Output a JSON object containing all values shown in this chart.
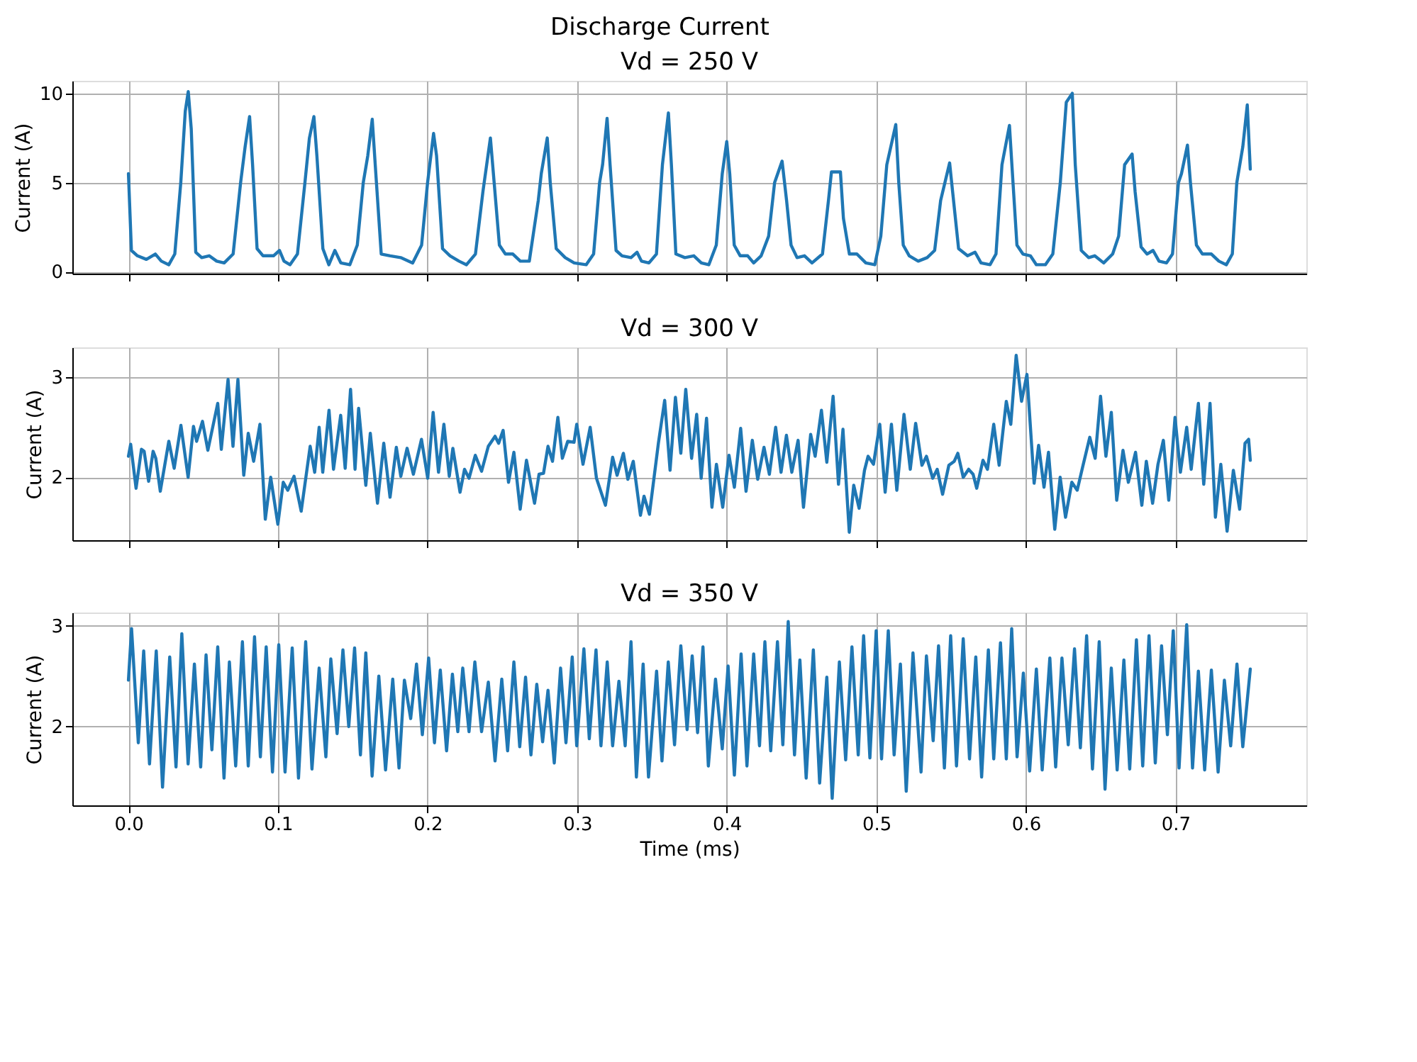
{
  "chart_data": [
    {
      "type": "line",
      "title": "Vd = 250 V",
      "ylabel": "Current (A)",
      "annotations": [
        "Discharge Current"
      ],
      "xlim": [
        -0.0375,
        0.7875
      ],
      "xticks": [
        0,
        0.1,
        0.2,
        0.3,
        0.4,
        0.5,
        0.6,
        0.7
      ],
      "ylim": [
        -0.1,
        10.7
      ],
      "yticks": [
        0,
        5,
        10
      ],
      "grid": true,
      "tick_labels": "y",
      "line_style": "solid",
      "x": [
        0,
        0.002,
        0.006,
        0.012,
        0.018,
        0.022,
        0.027,
        0.031,
        0.035,
        0.038,
        0.04,
        0.042,
        0.045,
        0.049,
        0.054,
        0.059,
        0.064,
        0.07,
        0.075,
        0.078,
        0.081,
        0.083,
        0.086,
        0.09,
        0.097,
        0.101,
        0.104,
        0.108,
        0.113,
        0.118,
        0.121,
        0.124,
        0.126,
        0.13,
        0.134,
        0.138,
        0.142,
        0.148,
        0.153,
        0.157,
        0.16,
        0.163,
        0.165,
        0.169,
        0.175,
        0.182,
        0.19,
        0.196,
        0.2,
        0.204,
        0.206,
        0.21,
        0.215,
        0.221,
        0.226,
        0.232,
        0.237,
        0.242,
        0.244,
        0.248,
        0.252,
        0.257,
        0.262,
        0.268,
        0.274,
        0.276,
        0.28,
        0.282,
        0.286,
        0.292,
        0.298,
        0.306,
        0.311,
        0.315,
        0.317,
        0.32,
        0.322,
        0.326,
        0.33,
        0.336,
        0.34,
        0.343,
        0.348,
        0.353,
        0.357,
        0.361,
        0.363,
        0.366,
        0.372,
        0.378,
        0.383,
        0.388,
        0.393,
        0.397,
        0.4,
        0.402,
        0.405,
        0.409,
        0.414,
        0.418,
        0.423,
        0.428,
        0.432,
        0.437,
        0.44,
        0.443,
        0.447,
        0.452,
        0.457,
        0.464,
        0.468,
        0.47,
        0.476,
        0.478,
        0.482,
        0.487,
        0.493,
        0.499,
        0.503,
        0.507,
        0.513,
        0.515,
        0.518,
        0.522,
        0.528,
        0.534,
        0.539,
        0.543,
        0.549,
        0.551,
        0.555,
        0.561,
        0.566,
        0.57,
        0.576,
        0.58,
        0.584,
        0.589,
        0.591,
        0.594,
        0.598,
        0.603,
        0.607,
        0.613,
        0.618,
        0.623,
        0.627,
        0.631,
        0.633,
        0.637,
        0.642,
        0.646,
        0.652,
        0.658,
        0.662,
        0.666,
        0.671,
        0.673,
        0.677,
        0.681,
        0.685,
        0.689,
        0.694,
        0.698,
        0.702,
        0.704,
        0.708,
        0.71,
        0.714,
        0.718,
        0.724,
        0.729,
        0.734,
        0.738,
        0.741,
        0.745,
        0.748,
        0.75
      ],
      "series": [
        {
          "color": "#1f77b4",
          "values": [
            5.5,
            1.2,
            0.9,
            0.7,
            1.0,
            0.6,
            0.4,
            1.0,
            5.0,
            9.0,
            10.1,
            8.0,
            1.1,
            0.8,
            0.9,
            0.6,
            0.5,
            1.0,
            5.0,
            7.0,
            8.7,
            6.0,
            1.3,
            0.9,
            0.9,
            1.2,
            0.6,
            0.4,
            1.0,
            5.0,
            7.5,
            8.7,
            6.5,
            1.3,
            0.4,
            1.2,
            0.5,
            0.4,
            1.5,
            5.0,
            6.5,
            8.55,
            6.0,
            1.0,
            0.9,
            0.8,
            0.5,
            1.5,
            5.0,
            7.75,
            6.5,
            1.3,
            0.9,
            0.6,
            0.4,
            1.0,
            4.5,
            7.5,
            5.5,
            1.5,
            1.0,
            1.0,
            0.6,
            0.6,
            4.0,
            5.5,
            7.5,
            5.0,
            1.3,
            0.8,
            0.5,
            0.4,
            1.0,
            5.0,
            6.0,
            8.6,
            6.0,
            1.2,
            0.9,
            0.8,
            1.1,
            0.6,
            0.5,
            1.0,
            6.0,
            8.9,
            6.0,
            1.0,
            0.8,
            0.9,
            0.5,
            0.4,
            1.5,
            5.5,
            7.3,
            5.5,
            1.5,
            0.9,
            0.9,
            0.5,
            0.9,
            2.0,
            5.0,
            6.2,
            4.0,
            1.5,
            0.8,
            0.9,
            0.5,
            1.0,
            4.0,
            5.6,
            5.6,
            3.0,
            1.0,
            1.0,
            0.5,
            0.4,
            2.0,
            6.0,
            8.25,
            5.0,
            1.5,
            0.9,
            0.6,
            0.8,
            1.2,
            4.0,
            6.1,
            4.5,
            1.3,
            0.9,
            1.1,
            0.5,
            0.4,
            1.0,
            6.0,
            8.2,
            5.5,
            1.5,
            1.0,
            0.9,
            0.4,
            0.4,
            1.0,
            5.0,
            9.5,
            10.0,
            6.0,
            1.2,
            0.8,
            0.9,
            0.5,
            1.0,
            2.0,
            6.0,
            6.6,
            4.5,
            1.4,
            1.0,
            1.2,
            0.6,
            0.5,
            1.0,
            5.0,
            5.5,
            7.1,
            5.0,
            1.5,
            1.0,
            1.0,
            0.6,
            0.4,
            1.0,
            5.0,
            7.0,
            9.35,
            5.75
          ]
        }
      ]
    },
    {
      "type": "line",
      "title": "Vd = 300 V",
      "ylabel": "Current (A)",
      "xlim": [
        -0.0375,
        0.7875
      ],
      "xticks": [
        0,
        0.1,
        0.2,
        0.3,
        0.4,
        0.5,
        0.6,
        0.7
      ],
      "ylim": [
        1.37,
        3.3
      ],
      "yticks": [
        2,
        3
      ],
      "grid": true,
      "tick_labels": "y",
      "line_style": "solid",
      "x": [
        0,
        0.0015,
        0.0051,
        0.0087,
        0.0105,
        0.0135,
        0.0165,
        0.0183,
        0.0213,
        0.027,
        0.0306,
        0.0351,
        0.0399,
        0.0435,
        0.0456,
        0.0495,
        0.0531,
        0.0597,
        0.0621,
        0.0666,
        0.0699,
        0.0732,
        0.0771,
        0.0801,
        0.0837,
        0.0879,
        0.0915,
        0.0951,
        0.0999,
        0.1035,
        0.1065,
        0.1107,
        0.1155,
        0.1215,
        0.1245,
        0.1275,
        0.1299,
        0.1341,
        0.1371,
        0.1419,
        0.1449,
        0.1485,
        0.1515,
        0.1539,
        0.1587,
        0.1617,
        0.1665,
        0.1707,
        0.1749,
        0.1791,
        0.1821,
        0.1863,
        0.1905,
        0.1959,
        0.2001,
        0.2037,
        0.2073,
        0.2109,
        0.2145,
        0.2169,
        0.2217,
        0.2247,
        0.2277,
        0.2319,
        0.2361,
        0.2406,
        0.2451,
        0.2475,
        0.2505,
        0.2541,
        0.2577,
        0.2619,
        0.2661,
        0.2715,
        0.2745,
        0.2775,
        0.2805,
        0.2835,
        0.2871,
        0.2901,
        0.2937,
        0.2979,
        0.2997,
        0.3039,
        0.3087,
        0.3129,
        0.3189,
        0.3237,
        0.3267,
        0.3309,
        0.3339,
        0.3375,
        0.3423,
        0.3447,
        0.3483,
        0.3543,
        0.3585,
        0.3621,
        0.3657,
        0.3693,
        0.3726,
        0.3765,
        0.3799,
        0.3829,
        0.3865,
        0.3901,
        0.3931,
        0.3973,
        0.4015,
        0.4051,
        0.4093,
        0.4129,
        0.4171,
        0.4207,
        0.4249,
        0.4285,
        0.4327,
        0.4363,
        0.4399,
        0.4435,
        0.4477,
        0.4513,
        0.4561,
        0.4591,
        0.4633,
        0.4669,
        0.4711,
        0.4747,
        0.4777,
        0.4819,
        0.4849,
        0.4885,
        0.4921,
        0.4945,
        0.4981,
        0.5023,
        0.5059,
        0.5101,
        0.5137,
        0.5185,
        0.5227,
        0.5263,
        0.5305,
        0.5335,
        0.5377,
        0.5407,
        0.5443,
        0.5485,
        0.5521,
        0.5545,
        0.5581,
        0.5617,
        0.5647,
        0.5671,
        0.5713,
        0.5743,
        0.5785,
        0.5821,
        0.5869,
        0.5899,
        0.5935,
        0.5971,
        0.6007,
        0.6055,
        0.6085,
        0.6121,
        0.6151,
        0.6193,
        0.6229,
        0.6265,
        0.6307,
        0.6343,
        0.6379,
        0.6427,
        0.6463,
        0.6499,
        0.6535,
        0.6571,
        0.6607,
        0.6649,
        0.6685,
        0.6733,
        0.6775,
        0.6805,
        0.6847,
        0.6883,
        0.6919,
        0.6955,
        0.6997,
        0.7033,
        0.7075,
        0.7105,
        0.7153,
        0.7189,
        0.7231,
        0.7267,
        0.7303,
        0.7345,
        0.7387,
        0.7429,
        0.7465,
        0.7489,
        0.75
      ],
      "series": [
        {
          "color": "#1f77b4",
          "values": [
            2.21,
            2.33,
            1.89,
            2.28,
            2.26,
            1.96,
            2.26,
            2.19,
            1.86,
            2.36,
            2.09,
            2.52,
            2.0,
            2.51,
            2.36,
            2.56,
            2.27,
            2.74,
            2.28,
            2.98,
            2.31,
            2.98,
            2.02,
            2.44,
            2.16,
            2.53,
            1.58,
            2.0,
            1.53,
            1.95,
            1.87,
            2.01,
            1.66,
            2.31,
            2.05,
            2.5,
            2.05,
            2.67,
            2.08,
            2.62,
            2.09,
            2.88,
            2.08,
            2.69,
            1.92,
            2.44,
            1.74,
            2.34,
            1.8,
            2.3,
            2.01,
            2.29,
            2.03,
            2.38,
            1.99,
            2.65,
            2.05,
            2.53,
            2.01,
            2.29,
            1.85,
            2.08,
            1.99,
            2.22,
            2.06,
            2.31,
            2.41,
            2.34,
            2.47,
            1.95,
            2.25,
            1.68,
            2.17,
            1.74,
            2.03,
            2.04,
            2.31,
            2.16,
            2.6,
            2.19,
            2.36,
            2.35,
            2.53,
            2.13,
            2.5,
            1.99,
            1.72,
            2.2,
            2.02,
            2.24,
            1.98,
            2.16,
            1.62,
            1.81,
            1.63,
            2.34,
            2.77,
            2.07,
            2.8,
            2.24,
            2.88,
            2.19,
            2.63,
            1.99,
            2.59,
            1.7,
            2.13,
            1.7,
            2.22,
            1.9,
            2.49,
            1.86,
            2.37,
            1.98,
            2.3,
            2.03,
            2.5,
            2.05,
            2.42,
            2.05,
            2.37,
            1.7,
            2.43,
            2.21,
            2.67,
            2.15,
            2.81,
            1.93,
            2.48,
            1.45,
            1.92,
            1.69,
            2.07,
            2.21,
            2.13,
            2.53,
            1.85,
            2.53,
            1.87,
            2.63,
            2.08,
            2.54,
            2.12,
            2.21,
            1.99,
            2.08,
            1.83,
            2.12,
            2.16,
            2.24,
            2.0,
            2.08,
            2.03,
            1.89,
            2.17,
            2.08,
            2.53,
            2.12,
            2.76,
            2.53,
            3.22,
            2.76,
            3.03,
            1.94,
            2.32,
            1.9,
            2.25,
            1.48,
            2.0,
            1.6,
            1.95,
            1.87,
            2.1,
            2.4,
            2.19,
            2.81,
            2.21,
            2.65,
            1.77,
            2.27,
            1.95,
            2.25,
            1.72,
            2.16,
            1.74,
            2.13,
            2.37,
            1.77,
            2.6,
            2.05,
            2.5,
            2.08,
            2.74,
            1.93,
            2.74,
            1.6,
            2.13,
            1.46,
            2.07,
            1.68,
            2.34,
            2.38,
            2.17
          ]
        }
      ]
    },
    {
      "type": "line",
      "title": "Vd = 350 V",
      "xlabel": "Time (ms)",
      "ylabel": "Current (A)",
      "xlim": [
        -0.0375,
        0.7875
      ],
      "xticks": [
        {
          "value": 0,
          "label": "0.0"
        },
        {
          "value": 0.1,
          "label": "0.1"
        },
        {
          "value": 0.2,
          "label": "0.2"
        },
        {
          "value": 0.3,
          "label": "0.3"
        },
        {
          "value": 0.4,
          "label": "0.4"
        },
        {
          "value": 0.5,
          "label": "0.5"
        },
        {
          "value": 0.6,
          "label": "0.6"
        },
        {
          "value": 0.7,
          "label": "0.7"
        }
      ],
      "ylim": [
        1.22,
        3.13
      ],
      "yticks": [
        2,
        3
      ],
      "grid": true,
      "line_style": "solid",
      "x": [
        0,
        0.0021,
        0.0066,
        0.0102,
        0.0141,
        0.0186,
        0.0228,
        0.0276,
        0.0318,
        0.0357,
        0.0399,
        0.0441,
        0.0483,
        0.0519,
        0.0558,
        0.0597,
        0.0639,
        0.0675,
        0.0717,
        0.0762,
        0.0801,
        0.0843,
        0.0882,
        0.0921,
        0.0963,
        0.1005,
        0.1047,
        0.1095,
        0.1137,
        0.1185,
        0.1227,
        0.1275,
        0.132,
        0.1353,
        0.1395,
        0.1434,
        0.1473,
        0.1512,
        0.1551,
        0.1587,
        0.1629,
        0.1674,
        0.1719,
        0.1767,
        0.1809,
        0.1845,
        0.1887,
        0.1926,
        0.1965,
        0.2007,
        0.2046,
        0.2085,
        0.2127,
        0.2166,
        0.2202,
        0.2235,
        0.2277,
        0.2316,
        0.2361,
        0.2406,
        0.2451,
        0.2496,
        0.2535,
        0.2577,
        0.2616,
        0.2655,
        0.2691,
        0.273,
        0.2769,
        0.2805,
        0.2847,
        0.2889,
        0.2925,
        0.2967,
        0.2997,
        0.3045,
        0.3081,
        0.3126,
        0.3159,
        0.3201,
        0.3237,
        0.3279,
        0.3321,
        0.336,
        0.3396,
        0.3441,
        0.3477,
        0.3531,
        0.3567,
        0.3609,
        0.3651,
        0.3693,
        0.3735,
        0.3769,
        0.3805,
        0.3841,
        0.3877,
        0.3925,
        0.397,
        0.4009,
        0.4051,
        0.4096,
        0.4135,
        0.418,
        0.4219,
        0.4255,
        0.4294,
        0.4339,
        0.4375,
        0.4411,
        0.4453,
        0.4489,
        0.4531,
        0.4579,
        0.4621,
        0.4669,
        0.4705,
        0.4753,
        0.4795,
        0.4837,
        0.4879,
        0.4915,
        0.4957,
        0.4999,
        0.5035,
        0.508,
        0.5119,
        0.5161,
        0.52,
        0.5245,
        0.5299,
        0.5335,
        0.538,
        0.5416,
        0.5455,
        0.5497,
        0.5536,
        0.5581,
        0.5623,
        0.5665,
        0.5704,
        0.5749,
        0.5785,
        0.583,
        0.5869,
        0.5905,
        0.5941,
        0.5983,
        0.6025,
        0.607,
        0.6109,
        0.616,
        0.6199,
        0.6241,
        0.6283,
        0.6325,
        0.6364,
        0.6406,
        0.6445,
        0.649,
        0.6529,
        0.6571,
        0.661,
        0.6655,
        0.6694,
        0.6739,
        0.6781,
        0.6823,
        0.6865,
        0.6907,
        0.6946,
        0.6985,
        0.7024,
        0.7075,
        0.7114,
        0.7153,
        0.7195,
        0.724,
        0.7285,
        0.7327,
        0.7369,
        0.7411,
        0.745,
        0.75
      ],
      "series": [
        {
          "color": "#1f77b4",
          "values": [
            2.46,
            2.97,
            1.84,
            2.75,
            1.63,
            2.75,
            1.4,
            2.69,
            1.6,
            2.92,
            1.63,
            2.62,
            1.6,
            2.71,
            1.77,
            2.79,
            1.49,
            2.64,
            1.61,
            2.84,
            1.61,
            2.89,
            1.7,
            2.79,
            1.55,
            2.81,
            1.55,
            2.78,
            1.49,
            2.84,
            1.58,
            2.58,
            1.7,
            2.67,
            1.93,
            2.76,
            2.0,
            2.78,
            1.72,
            2.73,
            1.51,
            2.5,
            1.57,
            2.47,
            1.59,
            2.46,
            2.08,
            2.62,
            1.92,
            2.68,
            1.84,
            2.56,
            1.76,
            2.52,
            1.95,
            2.58,
            1.95,
            2.64,
            1.95,
            2.44,
            1.66,
            2.47,
            1.76,
            2.64,
            1.8,
            2.49,
            1.72,
            2.42,
            1.85,
            2.36,
            1.64,
            2.58,
            1.84,
            2.69,
            1.81,
            2.77,
            1.88,
            2.76,
            1.81,
            2.64,
            1.81,
            2.45,
            1.81,
            2.84,
            1.5,
            2.62,
            1.5,
            2.55,
            1.66,
            2.64,
            1.82,
            2.8,
            1.97,
            2.7,
            1.94,
            2.79,
            1.61,
            2.47,
            1.78,
            2.6,
            1.52,
            2.72,
            1.61,
            2.72,
            1.81,
            2.84,
            1.76,
            2.84,
            1.82,
            3.04,
            1.72,
            2.66,
            1.49,
            2.76,
            1.44,
            2.49,
            1.29,
            2.64,
            1.67,
            2.79,
            1.72,
            2.9,
            1.69,
            2.95,
            1.68,
            2.95,
            1.72,
            2.62,
            1.36,
            2.73,
            1.55,
            2.7,
            1.86,
            2.8,
            1.59,
            2.9,
            1.61,
            2.87,
            1.68,
            2.69,
            1.5,
            2.76,
            1.68,
            2.83,
            1.68,
            2.97,
            1.7,
            2.53,
            1.56,
            2.57,
            1.57,
            2.68,
            1.6,
            2.68,
            1.82,
            2.77,
            1.79,
            2.9,
            1.58,
            2.84,
            1.38,
            2.58,
            1.57,
            2.66,
            1.58,
            2.86,
            1.61,
            2.9,
            1.64,
            2.8,
            1.92,
            2.95,
            1.59,
            3.01,
            1.59,
            2.55,
            1.57,
            2.56,
            1.55,
            2.46,
            1.81,
            2.62,
            1.8,
            2.57
          ]
        }
      ]
    }
  ]
}
